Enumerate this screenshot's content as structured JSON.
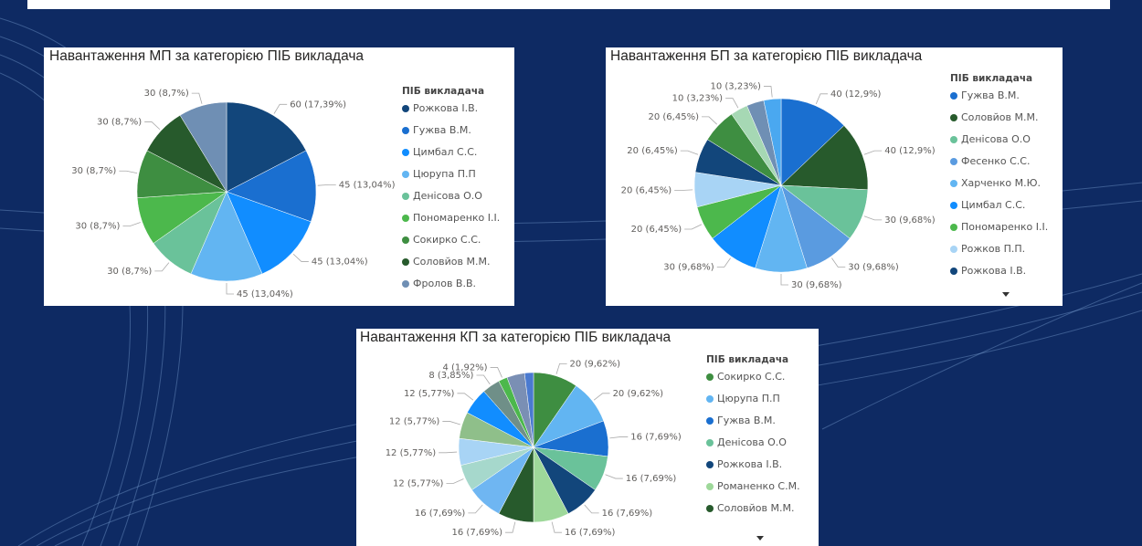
{
  "chart_data": [
    {
      "type": "pie",
      "title": "Навантаження МП за категорією ПІБ викладача",
      "legend_title": "ПІБ викладача",
      "categories": [
        "Рожкова І.В.",
        "Гужва В.М.",
        "Цимбал С.С.",
        "Цюрупа П.П",
        "Денісова О.О",
        "Пономаренко І.І.",
        "Сокирко С.С.",
        "Соловйов М.М.",
        "Фролов В.В."
      ],
      "values": [
        60,
        45,
        45,
        45,
        30,
        30,
        30,
        30,
        30
      ],
      "value_labels": [
        "60 (17,39%)",
        "45 (13,04%)",
        "45 (13,04%)",
        "45 (13,04%)",
        "30 (8,7%)",
        "30 (8,7%)",
        "30 (8,7%)",
        "30 (8,7%)",
        "30 (8,7%)"
      ],
      "colors": [
        "#12467b",
        "#1a6fd0",
        "#118dff",
        "#62b5f2",
        "#6ac29a",
        "#4cb84c",
        "#3e8e41",
        "#275a2c",
        "#6f8fb4"
      ]
    },
    {
      "type": "pie",
      "title": "Навантаження БП за категорією ПІБ викладача",
      "legend_title": "ПІБ викладача",
      "categories": [
        "Гужва В.М.",
        "Соловйов М.М.",
        "Денісова О.О",
        "Фесенко С.С.",
        "Харченко М.Ю.",
        "Цимбал С.С.",
        "Пономаренко І.І.",
        "Рожков П.П.",
        "Рожкова І.В.",
        null,
        null,
        null,
        null
      ],
      "values": [
        40,
        40,
        30,
        30,
        30,
        30,
        20,
        20,
        20,
        20,
        10,
        10,
        10
      ],
      "value_labels": [
        "40 (12,9%)",
        "40 (12,9%)",
        "30 (9,68%)",
        "30 (9,68%)",
        "30 (9,68%)",
        "30 (9,68%)",
        "20 (6,45%)",
        "20 (6,45%)",
        "20 (6,45%)",
        "20 (6,45%)",
        "10 (3,23%)",
        null,
        "10 (3,23%)"
      ],
      "colors": [
        "#1a6fd0",
        "#275a2c",
        "#6ac29a",
        "#5a9be0",
        "#62b5f2",
        "#118dff",
        "#4cb84c",
        "#a8d4f5",
        "#12467b",
        "#3e8e41",
        "#a6d8b4",
        "#6f8fb4",
        "#4aa8f0"
      ]
    },
    {
      "type": "pie",
      "title": "Навантаження КП за категорією ПІБ викладача",
      "legend_title": "ПІБ викладача",
      "categories": [
        "Сокирко С.С.",
        "Цюрупа П.П",
        "Гужва В.М.",
        "Денісова О.О",
        "Рожкова І.В.",
        "Романенко С.М.",
        "Соловйов М.М.",
        null,
        null,
        null,
        null,
        null,
        null,
        null,
        null,
        null
      ],
      "values": [
        20,
        20,
        16,
        16,
        16,
        16,
        16,
        16,
        12,
        12,
        12,
        12,
        8,
        4,
        8,
        4
      ],
      "value_labels": [
        "20 (9,62%)",
        "20 (9,62%)",
        "16 (7,69%)",
        "16 (7,69%)",
        "16 (7,69%)",
        "16 (7,69%)",
        "16 (7,69%)",
        "16 (7,69%)",
        "12 (5,77%)",
        "12 (5,77%)",
        "12 (5,77%)",
        "12 (5,77%)",
        "8 (3,85%)",
        "4 (1,92%)",
        null,
        null
      ],
      "colors": [
        "#3e8e41",
        "#62b5f2",
        "#1a6fd0",
        "#6ac29a",
        "#12467b",
        "#9ed89a",
        "#275a2c",
        "#6fb6f2",
        "#a6d8cc",
        "#a8d4f5",
        "#8fbf8a",
        "#118dff",
        "#6f8f88",
        "#4cb84c",
        "#7a8fb4",
        "#4a7ad0"
      ]
    }
  ]
}
